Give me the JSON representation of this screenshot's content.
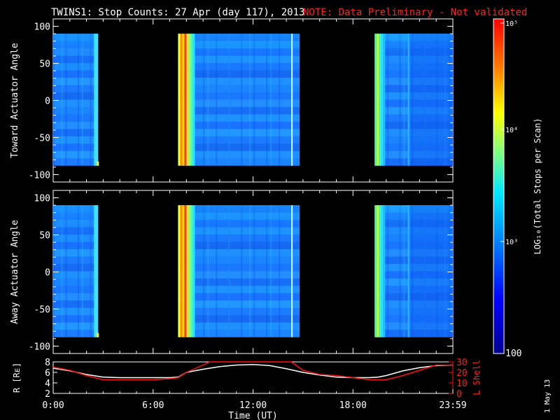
{
  "title": "TWINS1: Stop Counts: 27 Apr (day 117), 2013",
  "note": "NOTE: Data Preliminary - Not validated",
  "datestamp": "1 May 13",
  "colors": {
    "title": "#ffffff",
    "note": "#ff2020",
    "background": "#000000",
    "r_line": "#ffffff",
    "lshell_line": "#ff1010"
  },
  "chart_data": [
    {
      "type": "heatmap",
      "ylabel": "Toward Actuator Angle",
      "ylim": [
        -110,
        110
      ],
      "yticks": [
        "100",
        "50",
        "0",
        "-50",
        "-100"
      ],
      "data_yrange": [
        -88,
        90
      ],
      "xlim_hours": [
        0,
        24
      ],
      "segments": [
        {
          "start_h": 0.0,
          "end_h": 2.7,
          "level": "mid-low",
          "note": "edge brighter"
        },
        {
          "start_h": 7.5,
          "end_h": 14.8,
          "level": "high edge near 7.6-8.0 then mid-low"
        },
        {
          "start_h": 19.3,
          "end_h": 24.0,
          "level": "mid then low"
        }
      ]
    },
    {
      "type": "heatmap",
      "ylabel": "Away Actuator Angle",
      "ylim": [
        -110,
        110
      ],
      "yticks": [
        "100",
        "50",
        "0",
        "-50",
        "-100"
      ],
      "data_yrange": [
        -88,
        90
      ],
      "xlim_hours": [
        0,
        24
      ],
      "segments": [
        {
          "start_h": 0.0,
          "end_h": 2.7,
          "level": "mid-low"
        },
        {
          "start_h": 7.5,
          "end_h": 14.8,
          "level": "high edge near 7.6-8.2 then mid-low"
        },
        {
          "start_h": 19.3,
          "end_h": 24.0,
          "level": "mid then low"
        }
      ]
    },
    {
      "type": "line",
      "ylabel_left": "R [Rᴇ]",
      "ylabel_right": "L Shell",
      "xlabel": "Time (UT)",
      "xticks": [
        "0:00",
        "6:00",
        "12:00",
        "18:00",
        "23:59"
      ],
      "xlim_hours": [
        0,
        24
      ],
      "left_ylim": [
        2,
        8
      ],
      "left_yticks": [
        "8",
        "6",
        "4",
        "2"
      ],
      "right_ylim": [
        0,
        30
      ],
      "right_yticks": [
        "30",
        "20",
        "10",
        "0"
      ],
      "series": [
        {
          "name": "R [Rᴇ]",
          "axis": "left",
          "x": [
            0,
            1,
            2,
            3,
            4,
            5,
            6,
            7,
            7.5,
            8,
            9,
            10,
            11,
            12,
            13,
            14,
            15,
            16,
            17,
            18,
            19,
            19.5,
            20,
            21,
            22,
            23,
            24
          ],
          "y": [
            6.8,
            6.3,
            5.6,
            5.1,
            5.0,
            5.0,
            5.0,
            5.0,
            5.1,
            6.0,
            6.6,
            7.1,
            7.4,
            7.5,
            7.3,
            6.7,
            6.0,
            5.5,
            5.1,
            5.0,
            5.0,
            5.1,
            5.4,
            6.3,
            6.9,
            7.3,
            7.4
          ]
        },
        {
          "name": "L Shell",
          "axis": "right",
          "x": [
            0,
            1,
            2,
            3,
            4,
            5,
            6,
            7,
            7.5,
            8,
            9,
            9.4,
            14.3,
            15,
            16,
            17,
            18,
            19,
            20,
            21,
            22,
            23,
            24
          ],
          "y": [
            25,
            22,
            17,
            13,
            13,
            13,
            13,
            14,
            15,
            20,
            27,
            30,
            30,
            22,
            18,
            17,
            15,
            13,
            13,
            17,
            22,
            27,
            27
          ]
        }
      ]
    }
  ],
  "colorbar": {
    "label": "LOG₁₀(Total Stops per Scan)",
    "ticks": [
      "10⁵",
      "10⁴",
      "10³",
      "100"
    ]
  }
}
